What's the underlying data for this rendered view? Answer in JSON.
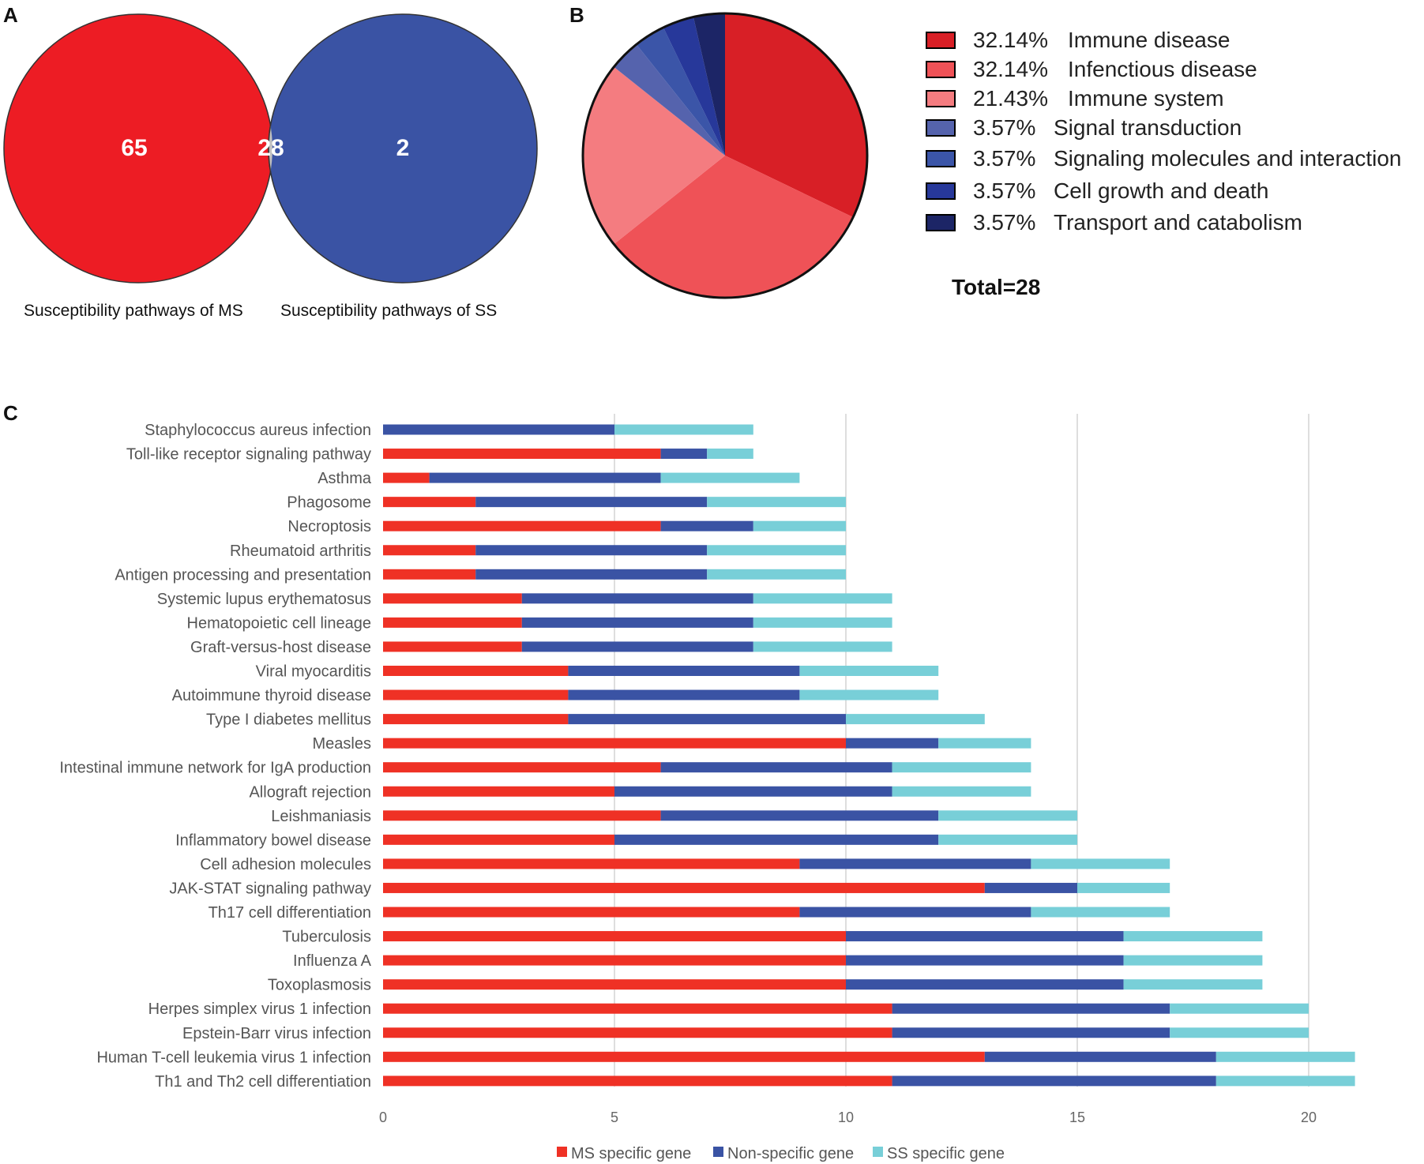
{
  "panels": {
    "a": "A",
    "b": "B",
    "c": "C"
  },
  "venn": {
    "left_count": "65",
    "overlap_count": "28",
    "right_count": "2",
    "left_label": "Susceptibility pathways of MS",
    "right_label": "Susceptibility pathways of SS",
    "colors": {
      "left": "#ed1c24",
      "overlap": "#c0c0c0",
      "right": "#3a53a4"
    }
  },
  "pie": {
    "total_label": "Total=28",
    "slices": [
      {
        "pct_label": "32.14%",
        "name": "Immune disease",
        "value": 32.14,
        "color": "#d81f26"
      },
      {
        "pct_label": "32.14%",
        "name": "Infenctious disease",
        "value": 32.14,
        "color": "#ef5257"
      },
      {
        "pct_label": "21.43%",
        "name": "Immune system",
        "value": 21.43,
        "color": "#f47c80"
      },
      {
        "pct_label": "3.57%",
        "name": "Signal transduction",
        "value": 3.57,
        "color": "#5563ad"
      },
      {
        "pct_label": "3.57%",
        "name": "Signaling molecules and interaction",
        "value": 3.57,
        "color": "#3b55a8"
      },
      {
        "pct_label": "3.57%",
        "name": "Cell growth and death",
        "value": 3.57,
        "color": "#27389a"
      },
      {
        "pct_label": "3.57%",
        "name": "Transport and catabolism",
        "value": 3.57,
        "color": "#1c2566"
      }
    ]
  },
  "chart_data": {
    "type": "bar",
    "orientation": "horizontal-stacked",
    "categories": [
      "Staphylococcus aureus infection",
      "Toll-like receptor signaling pathway",
      "Asthma",
      "Phagosome",
      "Necroptosis",
      "Rheumatoid arthritis",
      "Antigen processing and presentation",
      "Systemic lupus erythematosus",
      "Hematopoietic cell lineage",
      "Graft-versus-host disease",
      "Viral myocarditis",
      "Autoimmune thyroid disease",
      "Type I diabetes mellitus",
      "Measles",
      "Intestinal immune network for IgA production",
      "Allograft rejection",
      "Leishmaniasis",
      "Inflammatory bowel disease",
      "Cell adhesion molecules",
      "JAK-STAT signaling pathway",
      "Th17 cell differentiation",
      "Tuberculosis",
      "Influenza A",
      "Toxoplasmosis",
      "Herpes simplex virus 1 infection",
      "Epstein-Barr virus infection",
      "Human T-cell leukemia virus 1 infection",
      "Th1 and Th2 cell differentiation"
    ],
    "series": [
      {
        "name": "MS specific gene",
        "color": "#ef3125",
        "values": [
          0,
          6,
          1,
          2,
          6,
          2,
          2,
          3,
          3,
          3,
          4,
          4,
          4,
          10,
          6,
          5,
          6,
          5,
          9,
          13,
          9,
          10,
          10,
          10,
          11,
          11,
          13,
          11
        ]
      },
      {
        "name": "Non-specific gene",
        "color": "#3a53a4",
        "values": [
          5,
          1,
          5,
          5,
          2,
          5,
          5,
          5,
          5,
          5,
          5,
          5,
          6,
          2,
          5,
          6,
          6,
          7,
          5,
          2,
          5,
          6,
          6,
          6,
          6,
          6,
          5,
          7
        ]
      },
      {
        "name": "SS specific gene",
        "color": "#78cfd8",
        "values": [
          3,
          1,
          3,
          3,
          2,
          3,
          3,
          3,
          3,
          3,
          3,
          3,
          3,
          2,
          3,
          3,
          3,
          3,
          3,
          2,
          3,
          3,
          3,
          3,
          3,
          3,
          3,
          3
        ]
      }
    ],
    "xticks": [
      0,
      5,
      10,
      15,
      20
    ],
    "xlim": [
      0,
      21.5
    ],
    "grid": true,
    "legend_position": "bottom-center",
    "title": "",
    "xlabel": "",
    "ylabel": ""
  }
}
